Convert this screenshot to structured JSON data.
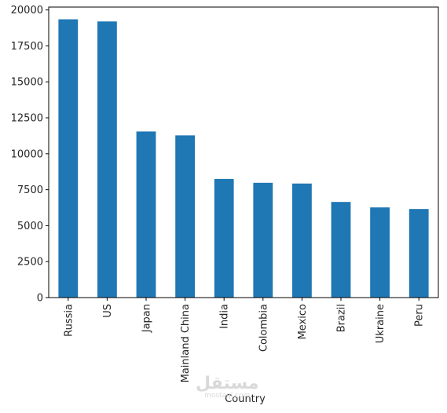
{
  "chart_data": {
    "type": "bar",
    "title": "",
    "xlabel": "Country",
    "ylabel": "",
    "categories": [
      "Russia",
      "US",
      "Japan",
      "Mainland China",
      "India",
      "Colombia",
      "Mexico",
      "Brazil",
      "Ukraine",
      "Peru"
    ],
    "values": [
      19350,
      19200,
      11550,
      11280,
      8250,
      7980,
      7930,
      6650,
      6270,
      6160
    ],
    "ylim": [
      0,
      20200
    ],
    "yticks": [
      0,
      2500,
      5000,
      7500,
      10000,
      12500,
      15000,
      17500,
      20000
    ],
    "bar_color": "#1f77b4",
    "grid": false,
    "legend": "none"
  },
  "watermark": {
    "main": "مستقل",
    "sub": "mostaql.com"
  }
}
